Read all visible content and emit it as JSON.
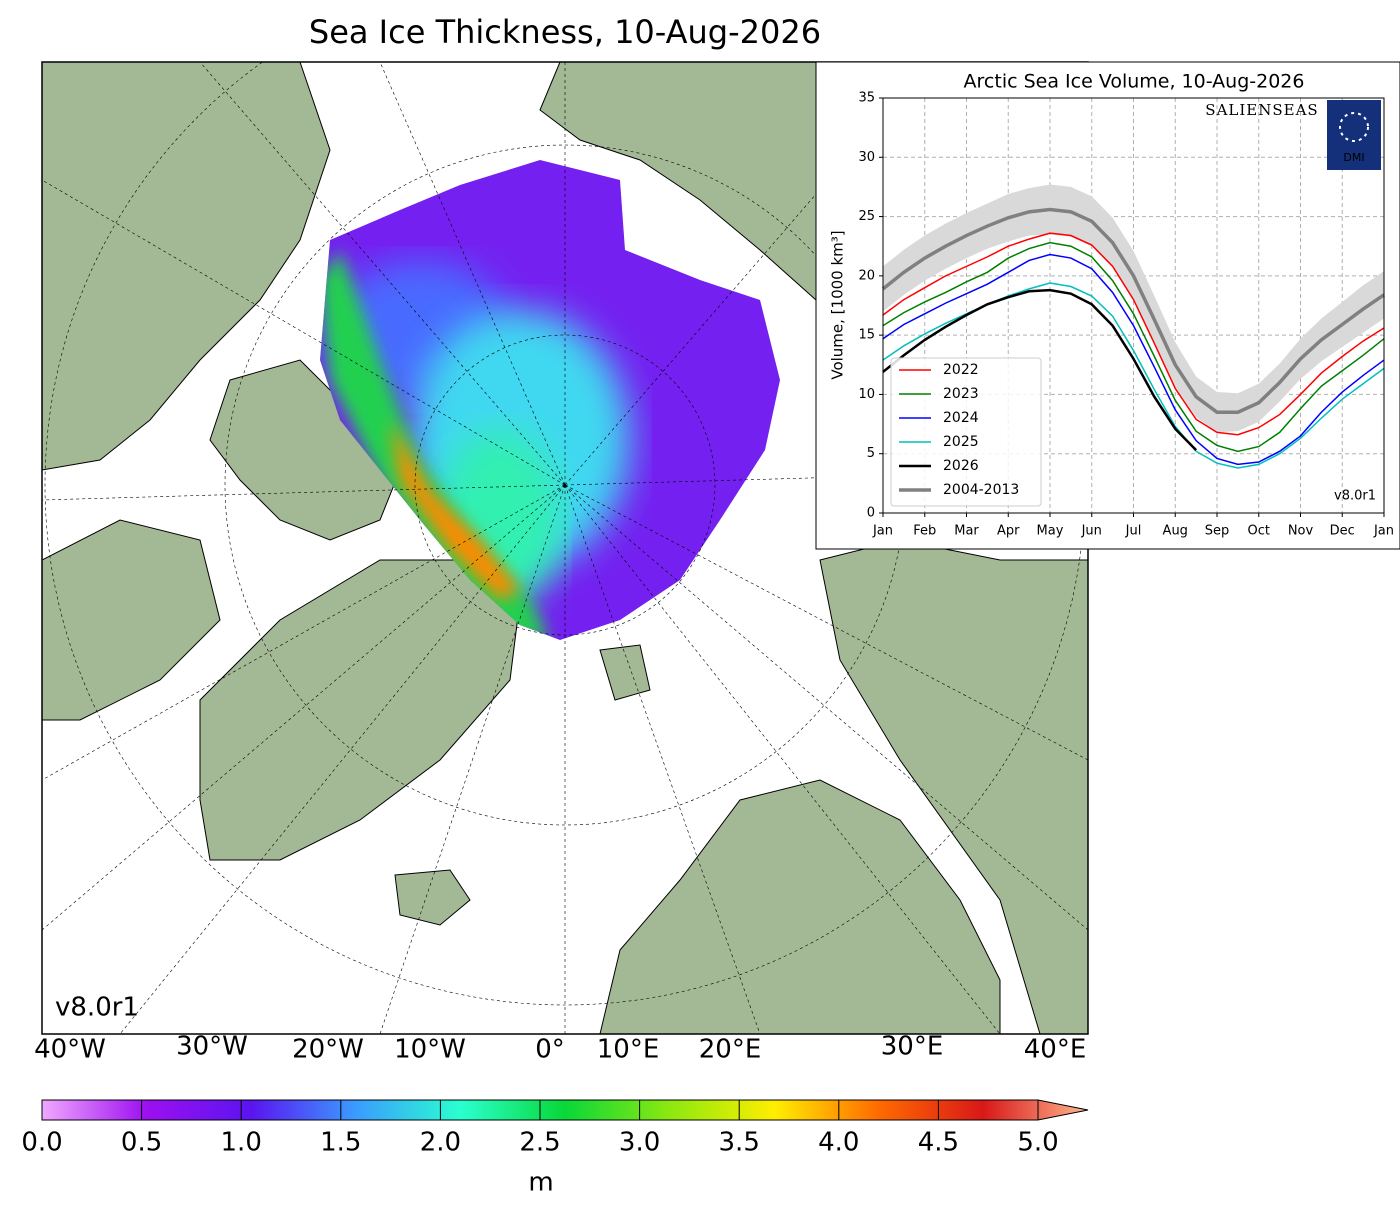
{
  "map": {
    "title": "Sea Ice Thickness, 10-Aug-2026",
    "version": "v8.0r1",
    "lon_labels": [
      "40°W",
      "30°W",
      "20°W",
      "10°W",
      "0°",
      "10°E",
      "20°E",
      "30°E",
      "40°E"
    ],
    "colorbar": {
      "lim": [
        0,
        5
      ],
      "label": "m",
      "ticks": [
        {
          "value": 0,
          "label": "0.0"
        },
        {
          "value": 0.5,
          "label": "0.5"
        },
        {
          "value": 1,
          "label": "1.0"
        },
        {
          "value": 1.5,
          "label": "1.5"
        },
        {
          "value": 2,
          "label": "2.0"
        },
        {
          "value": 2.5,
          "label": "2.5"
        },
        {
          "value": 3,
          "label": "3.0"
        },
        {
          "value": 3.5,
          "label": "3.5"
        },
        {
          "value": 4,
          "label": "4.0"
        },
        {
          "value": 4.5,
          "label": "4.5"
        },
        {
          "value": 5,
          "label": "5.0"
        }
      ]
    }
  },
  "chart_data": {
    "type": "line",
    "title": "Arctic Sea Ice Volume, 10-Aug-2026",
    "y_label": "Volume, [1000 km³]",
    "version": "v8.0r1",
    "logos": [
      "SALIENSEAS",
      "DMI"
    ],
    "grid": true,
    "legend": "lower left",
    "xlim": [
      0,
      12
    ],
    "ylim": [
      0,
      35
    ],
    "xticks": [
      {
        "value": 0,
        "label": "Jan"
      },
      {
        "value": 1,
        "label": "Feb"
      },
      {
        "value": 2,
        "label": "Mar"
      },
      {
        "value": 3,
        "label": "Apr"
      },
      {
        "value": 4,
        "label": "May"
      },
      {
        "value": 5,
        "label": "Jun"
      },
      {
        "value": 6,
        "label": "Jul"
      },
      {
        "value": 7,
        "label": "Aug"
      },
      {
        "value": 8,
        "label": "Sep"
      },
      {
        "value": 9,
        "label": "Oct"
      },
      {
        "value": 10,
        "label": "Nov"
      },
      {
        "value": 11,
        "label": "Dec"
      },
      {
        "value": 12,
        "label": "Jan"
      }
    ],
    "yticks": [
      0,
      5,
      10,
      15,
      20,
      25,
      30,
      35
    ],
    "x": [
      0,
      0.5,
      1,
      1.5,
      2,
      2.5,
      3,
      3.5,
      4,
      4.5,
      5,
      5.5,
      6,
      6.5,
      7,
      7.5,
      8,
      8.5,
      9,
      9.5,
      10,
      10.5,
      11,
      11.5,
      12
    ],
    "band": {
      "color": "#d9d9d9",
      "upper": [
        20.8,
        22.2,
        23.4,
        24.4,
        25.3,
        26.1,
        26.9,
        27.4,
        27.7,
        27.5,
        26.7,
        24.9,
        22.1,
        18.3,
        14.4,
        11.5,
        10.2,
        10.1,
        10.9,
        12.6,
        14.7,
        16.4,
        17.8,
        19.2,
        20.4
      ],
      "lower": [
        17.0,
        18.4,
        19.6,
        20.6,
        21.5,
        22.3,
        22.9,
        23.4,
        23.5,
        23.3,
        22.5,
        20.7,
        17.9,
        14.3,
        10.6,
        8.1,
        6.8,
        6.9,
        7.7,
        9.4,
        11.3,
        12.8,
        14.0,
        15.2,
        16.4
      ]
    },
    "series": [
      {
        "name": "2022",
        "color": "#ff0000",
        "width": 1.5,
        "values": [
          16.7,
          18.0,
          19.0,
          20.0,
          20.8,
          21.6,
          22.5,
          23.1,
          23.6,
          23.4,
          22.6,
          20.8,
          18.0,
          14.3,
          10.5,
          7.9,
          6.8,
          6.6,
          7.2,
          8.3,
          10.0,
          11.8,
          13.2,
          14.5,
          15.6
        ]
      },
      {
        "name": "2023",
        "color": "#008000",
        "width": 1.5,
        "values": [
          15.8,
          16.9,
          17.8,
          18.6,
          19.5,
          20.3,
          21.5,
          22.3,
          22.8,
          22.5,
          21.6,
          19.6,
          16.8,
          13.2,
          9.5,
          6.9,
          5.7,
          5.2,
          5.6,
          6.8,
          8.8,
          10.7,
          12.0,
          13.3,
          14.7
        ]
      },
      {
        "name": "2024",
        "color": "#0000ff",
        "width": 1.5,
        "values": [
          14.7,
          15.9,
          16.8,
          17.7,
          18.5,
          19.3,
          20.3,
          21.3,
          21.8,
          21.5,
          20.6,
          18.6,
          15.8,
          12.3,
          8.7,
          6.1,
          4.6,
          4.1,
          4.3,
          5.2,
          6.5,
          8.5,
          10.2,
          11.6,
          12.9
        ]
      },
      {
        "name": "2025",
        "color": "#00bfbf",
        "width": 1.5,
        "values": [
          12.9,
          14.1,
          15.1,
          16.0,
          16.8,
          17.6,
          18.3,
          18.9,
          19.4,
          19.1,
          18.3,
          16.6,
          13.7,
          10.4,
          7.3,
          5.2,
          4.2,
          3.8,
          4.1,
          5.0,
          6.3,
          8.0,
          9.6,
          10.9,
          12.2
        ]
      },
      {
        "name": "2026",
        "color": "#000000",
        "width": 2.5,
        "values": [
          11.9,
          13.3,
          14.6,
          15.7,
          16.7,
          17.6,
          18.2,
          18.7,
          18.8,
          18.5,
          17.6,
          15.8,
          13.0,
          9.8,
          7.1,
          5.3,
          null,
          null,
          null,
          null,
          null,
          null,
          null,
          null,
          null
        ]
      },
      {
        "name": "2004-2013",
        "color": "#808080",
        "width": 3.5,
        "values": [
          18.9,
          20.3,
          21.5,
          22.5,
          23.4,
          24.2,
          24.9,
          25.4,
          25.6,
          25.4,
          24.6,
          22.8,
          20.0,
          16.3,
          12.5,
          9.8,
          8.5,
          8.5,
          9.3,
          11.0,
          13.0,
          14.6,
          15.9,
          17.2,
          18.4
        ]
      }
    ]
  }
}
